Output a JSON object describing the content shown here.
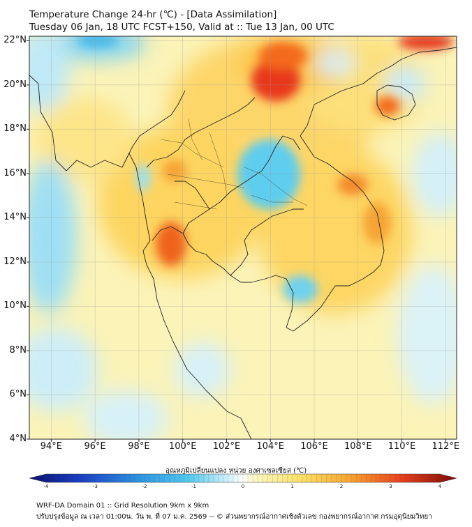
{
  "title_line1": "Temperature Change 24-hr (℃) - [Data Assimilation]",
  "title_line2": "Tuesday 06 Jan, 18 UTC FCST+150, Valid at :: Tue 13 Jan, 00 UTC",
  "lat_labels": [
    "22°N",
    "20°N",
    "18°N",
    "16°N",
    "14°N",
    "12°N",
    "10°N",
    "8°N",
    "6°N",
    "4°N"
  ],
  "lon_labels": [
    "94°E",
    "96°E",
    "98°E",
    "100°E",
    "102°E",
    "104°E",
    "106°E",
    "108°E",
    "110°E",
    "112°E"
  ],
  "colorbar": {
    "title": "อุณหภูมิเปลี่ยนแปลง หน่วย องศาเซลเซียส (℃)",
    "ticks": [
      "-4",
      "-3",
      "-2",
      "-1",
      "0",
      "1",
      "2",
      "3",
      "4"
    ],
    "range": [
      -4,
      4
    ]
  },
  "footer_line1": "WRF-DA Domain 01 :: Grid Resolution 9km x 9km",
  "footer_line2": "ปรับปรุงข้อมูล ณ เวลา 01:00น. วัน พ. ที่ 07 ม.ค. 2569 -- © ส่วนพยากรณ์อากาศเชิงตัวเลข กองพยากรณ์อากาศ กรมอุตุนิยมวิทยา"
}
